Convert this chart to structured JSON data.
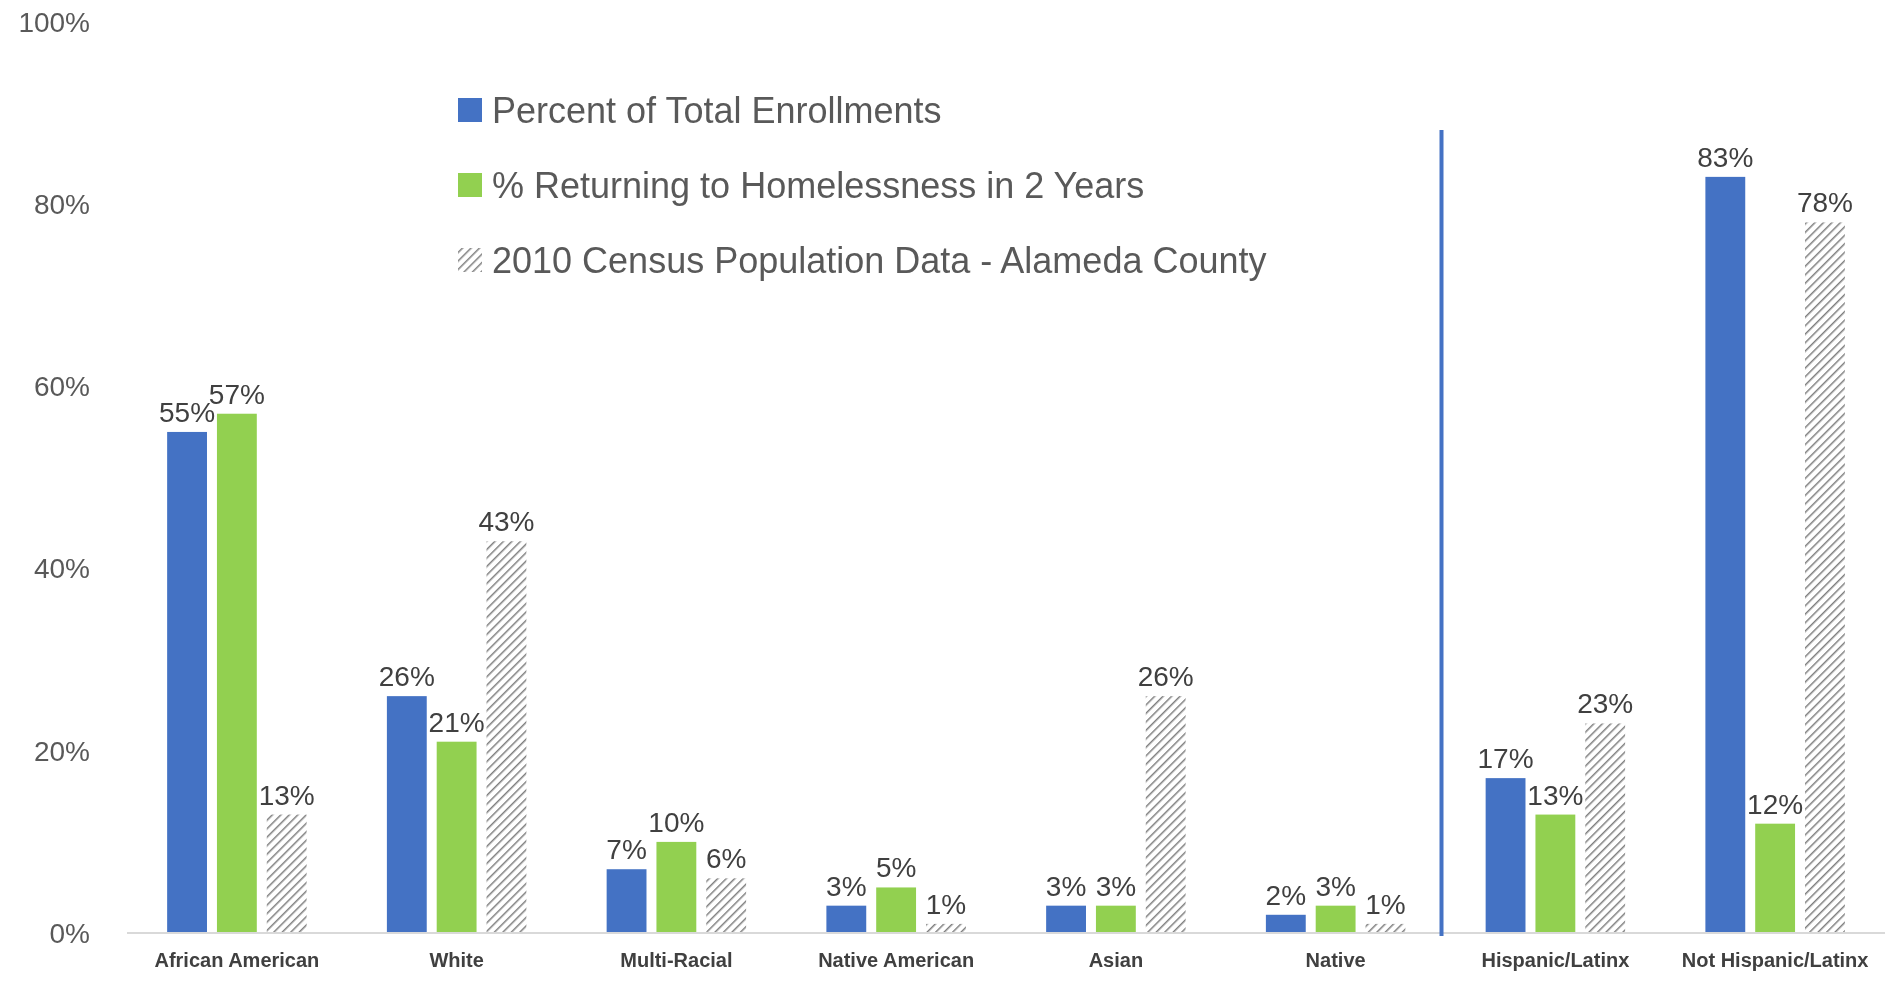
{
  "chart_data": {
    "type": "bar",
    "categories": [
      "African American",
      "White",
      "Multi-Racial",
      "Native American",
      "Asian",
      "Native",
      "Hispanic/Latinx",
      "Not Hispanic/Latinx"
    ],
    "series": [
      {
        "name": "Percent of Total Enrollments",
        "color": "#4472c4",
        "values": [
          55,
          26,
          7,
          3,
          3,
          2,
          17,
          83
        ],
        "value_labels": [
          "55%",
          "26%",
          "7%",
          "3%",
          "3%",
          "2%",
          "17%",
          "83%"
        ]
      },
      {
        "name": "% Returning to Homelessness in 2 Years",
        "color": "#92d050",
        "values": [
          57,
          21,
          10,
          5,
          3,
          3,
          13,
          12
        ],
        "value_labels": [
          "57%",
          "21%",
          "10%",
          "5%",
          "3%",
          "3%",
          "13%",
          "12%"
        ]
      },
      {
        "name": "2010 Census Population Data -  Alameda County",
        "color": "#7f7f7f",
        "values": [
          13,
          43,
          6,
          1,
          26,
          1,
          23,
          78
        ],
        "value_labels": [
          "13%",
          "43%",
          "6%",
          "1%",
          "26%",
          "1%",
          "23%",
          "78%"
        ]
      }
    ],
    "ylim": [
      0,
      100
    ],
    "yticks": [
      {
        "value": 0,
        "label": "0%"
      },
      {
        "value": 20,
        "label": "20%"
      },
      {
        "value": 40,
        "label": "40%"
      },
      {
        "value": 60,
        "label": "60%"
      },
      {
        "value": 80,
        "label": "80%"
      },
      {
        "value": 100,
        "label": "100%"
      }
    ],
    "grid": false,
    "legend": "top",
    "ref_lines": [
      {
        "axis": "x",
        "value": "Hispanic/Latinx",
        "color": "#4472c4"
      }
    ]
  }
}
